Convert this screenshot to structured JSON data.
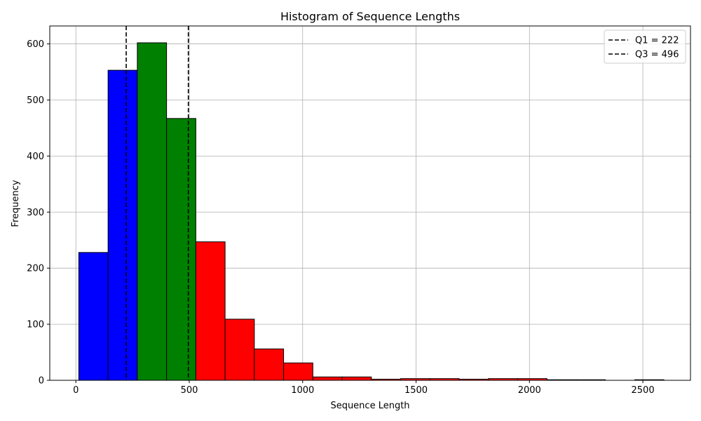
{
  "chart_data": {
    "type": "bar",
    "title": "Histogram of Sequence Lengths",
    "xlabel": "Sequence Length",
    "ylabel": "Frequency",
    "xlim": [
      -115,
      2710
    ],
    "ylim": [
      0,
      632
    ],
    "xticks": [
      0,
      500,
      1000,
      1500,
      2000,
      2500
    ],
    "yticks": [
      0,
      100,
      200,
      300,
      400,
      500,
      600
    ],
    "grid": true,
    "legend_position": "upper right",
    "bins": [
      {
        "start": 13,
        "end": 142,
        "value": 228,
        "color": "#0000ff"
      },
      {
        "start": 142,
        "end": 271,
        "value": 553,
        "color": "#0000ff"
      },
      {
        "start": 271,
        "end": 400,
        "value": 602,
        "color": "#008000"
      },
      {
        "start": 400,
        "end": 529,
        "value": 467,
        "color": "#008000"
      },
      {
        "start": 529,
        "end": 658,
        "value": 247,
        "color": "#ff0000"
      },
      {
        "start": 658,
        "end": 787,
        "value": 109,
        "color": "#ff0000"
      },
      {
        "start": 787,
        "end": 916,
        "value": 56,
        "color": "#ff0000"
      },
      {
        "start": 916,
        "end": 1045,
        "value": 31,
        "color": "#ff0000"
      },
      {
        "start": 1045,
        "end": 1174,
        "value": 6,
        "color": "#ff0000"
      },
      {
        "start": 1174,
        "end": 1303,
        "value": 6,
        "color": "#ff0000"
      },
      {
        "start": 1303,
        "end": 1432,
        "value": 2,
        "color": "#ff0000"
      },
      {
        "start": 1432,
        "end": 1561,
        "value": 3,
        "color": "#ff0000"
      },
      {
        "start": 1561,
        "end": 1690,
        "value": 3,
        "color": "#ff0000"
      },
      {
        "start": 1690,
        "end": 1819,
        "value": 2,
        "color": "#ff0000"
      },
      {
        "start": 1819,
        "end": 1948,
        "value": 3,
        "color": "#ff0000"
      },
      {
        "start": 1948,
        "end": 2077,
        "value": 3,
        "color": "#ff0000"
      },
      {
        "start": 2077,
        "end": 2206,
        "value": 1,
        "color": "#ff0000"
      },
      {
        "start": 2206,
        "end": 2335,
        "value": 1,
        "color": "#ff0000"
      },
      {
        "start": 2335,
        "end": 2464,
        "value": 0,
        "color": "#ff0000"
      },
      {
        "start": 2464,
        "end": 2593,
        "value": 1,
        "color": "#ff0000"
      }
    ],
    "reference_lines": [
      {
        "x": 222,
        "label": "Q1 = 222",
        "color": "#000000",
        "style": "dashed"
      },
      {
        "x": 496,
        "label": "Q3 = 496",
        "color": "#000000",
        "style": "dashed"
      }
    ]
  }
}
